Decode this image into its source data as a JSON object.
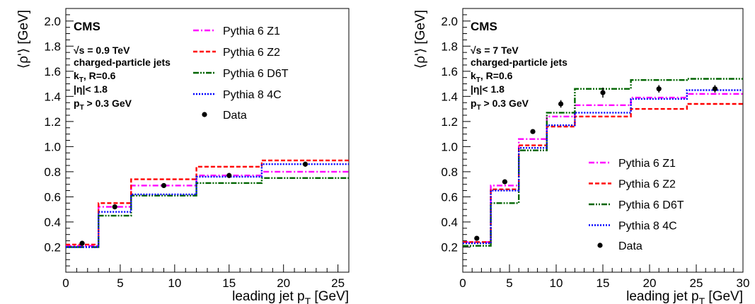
{
  "chart_data": [
    {
      "type": "line",
      "step": true,
      "experiment": "CMS",
      "info_lines": [
        {
          "pre": "√s = 0.9 TeV",
          "sub": "",
          "post": ""
        },
        {
          "pre": "charged-particle jets",
          "sub": "",
          "post": ""
        },
        {
          "pre": "k",
          "sub": "T",
          "post": ", R=0.6"
        },
        {
          "pre": "|η|< 1.8",
          "sub": "",
          "post": ""
        },
        {
          "pre": "p",
          "sub": "T",
          "post": " > 0.3 GeV"
        }
      ],
      "ylabel": "⟨ρ'⟩ [GeV]",
      "xlabel": {
        "pre": "leading jet p",
        "sub": "T",
        "post": " [GeV]"
      },
      "xlim": [
        0,
        26
      ],
      "ylim": [
        0,
        2.1
      ],
      "xticks": [
        0,
        5,
        10,
        15,
        20,
        25
      ],
      "yticks": [
        0.2,
        0.4,
        0.6,
        0.8,
        1.0,
        1.2,
        1.4,
        1.6,
        1.8,
        2.0
      ],
      "ytick_labels": [
        "0.2",
        "0.4",
        "0.6",
        "0.8",
        "1.0",
        "1.2",
        "1.4",
        "1.6",
        "1.8",
        "2.0"
      ],
      "bin_edges": [
        0,
        3,
        6,
        12,
        18,
        26
      ],
      "legend_placement": "top-right",
      "series": [
        {
          "name": "Pythia 6 Z1",
          "color": "#ff00ff",
          "dash": "dashdot",
          "values": [
            0.21,
            0.52,
            0.69,
            0.77,
            0.8
          ]
        },
        {
          "name": "Pythia 6 Z2",
          "color": "#ff0000",
          "dash": "dash",
          "values": [
            0.22,
            0.55,
            0.74,
            0.84,
            0.89
          ]
        },
        {
          "name": "Pythia 6 D6T",
          "color": "#006400",
          "dash": "dashdotdot",
          "values": [
            0.2,
            0.45,
            0.61,
            0.71,
            0.75
          ]
        },
        {
          "name": "Pythia 8 4C",
          "color": "#0000ff",
          "dash": "dot",
          "values": [
            0.2,
            0.48,
            0.62,
            0.76,
            0.86
          ]
        }
      ],
      "data": {
        "name": "Data",
        "x": [
          1.5,
          4.5,
          9.0,
          15.0,
          22.0
        ],
        "y": [
          0.23,
          0.52,
          0.69,
          0.77,
          0.86
        ],
        "err": [
          0.0,
          0.0,
          0.0,
          0.02,
          0.02
        ]
      }
    },
    {
      "type": "line",
      "step": true,
      "experiment": "CMS",
      "info_lines": [
        {
          "pre": "√s = 7 TeV",
          "sub": "",
          "post": ""
        },
        {
          "pre": "charged-particle jets",
          "sub": "",
          "post": ""
        },
        {
          "pre": "k",
          "sub": "T",
          "post": ", R=0.6"
        },
        {
          "pre": "|η|< 1.8",
          "sub": "",
          "post": ""
        },
        {
          "pre": "p",
          "sub": "T",
          "post": " > 0.3 GeV"
        }
      ],
      "ylabel": "⟨ρ'⟩ [GeV]",
      "xlabel": {
        "pre": "leading jet p",
        "sub": "T",
        "post": " [GeV]"
      },
      "xlim": [
        0,
        30
      ],
      "ylim": [
        0,
        2.1
      ],
      "xticks": [
        0,
        5,
        10,
        15,
        20,
        25,
        30
      ],
      "yticks": [
        0.2,
        0.4,
        0.6,
        0.8,
        1.0,
        1.2,
        1.4,
        1.6,
        1.8,
        2.0
      ],
      "ytick_labels": [
        "0.2",
        "0.4",
        "0.6",
        "0.8",
        "1.0",
        "1.2",
        "1.4",
        "1.6",
        "1.8",
        "2.0"
      ],
      "bin_edges": [
        0,
        3,
        6,
        9,
        12,
        18,
        24,
        30
      ],
      "legend_placement": "bottom-right",
      "series": [
        {
          "name": "Pythia 6 Z1",
          "color": "#ff00ff",
          "dash": "dashdot",
          "values": [
            0.24,
            0.69,
            1.06,
            1.24,
            1.33,
            1.39,
            1.42
          ]
        },
        {
          "name": "Pythia 6 Z2",
          "color": "#ff0000",
          "dash": "dash",
          "values": [
            0.24,
            0.66,
            1.01,
            1.16,
            1.24,
            1.3,
            1.34
          ]
        },
        {
          "name": "Pythia 6 D6T",
          "color": "#006400",
          "dash": "dashdotdot",
          "values": [
            0.21,
            0.55,
            0.97,
            1.27,
            1.46,
            1.53,
            1.54
          ]
        },
        {
          "name": "Pythia 8 4C",
          "color": "#0000ff",
          "dash": "dot",
          "values": [
            0.23,
            0.65,
            0.99,
            1.17,
            1.27,
            1.38,
            1.45
          ]
        }
      ],
      "data": {
        "name": "Data",
        "x": [
          1.5,
          4.5,
          7.5,
          10.5,
          15.0,
          21.0,
          27.0
        ],
        "y": [
          0.27,
          0.72,
          1.12,
          1.34,
          1.43,
          1.46,
          1.46
        ],
        "err": [
          0.0,
          0.0,
          0.01,
          0.03,
          0.04,
          0.03,
          0.03
        ]
      }
    }
  ]
}
